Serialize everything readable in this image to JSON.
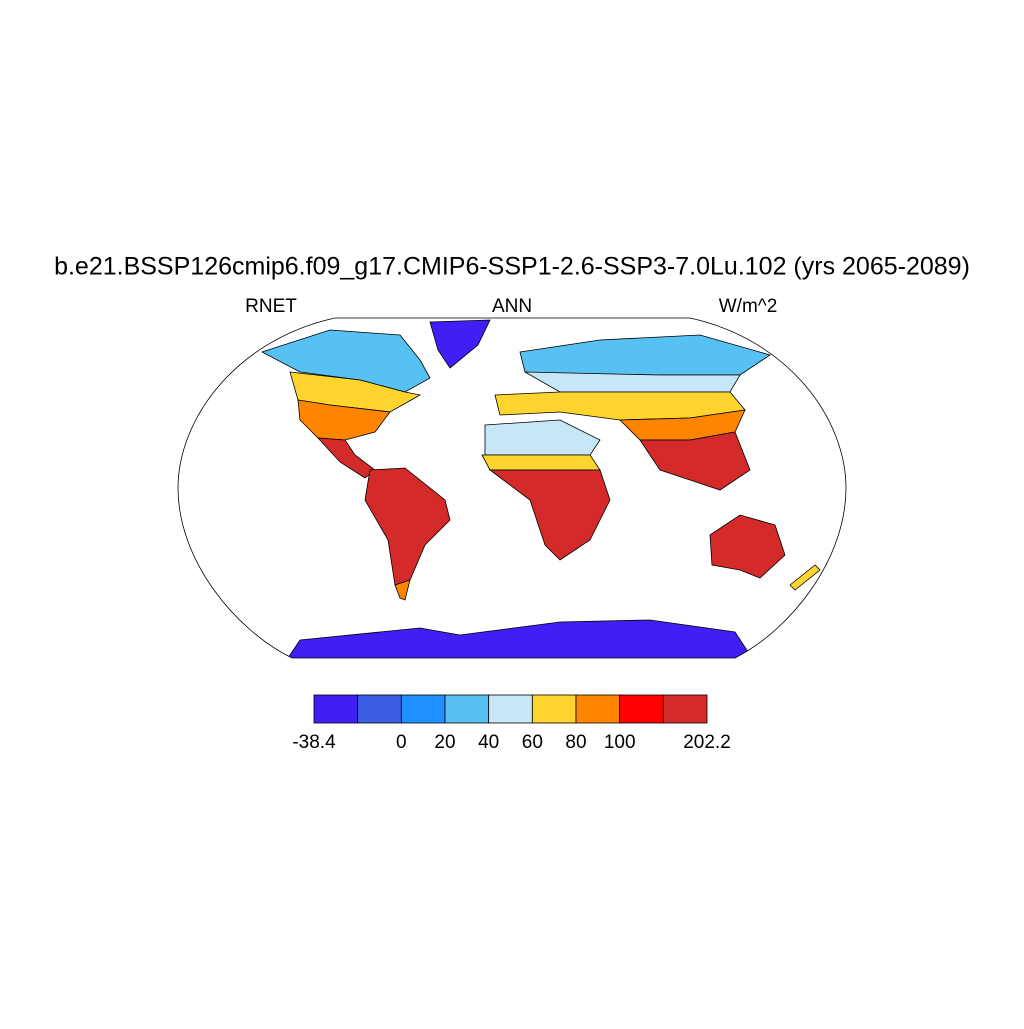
{
  "title": "b.e21.BSSP126cmip6.f09_g17.CMIP6-SSP1-2.6-SSP3-7.0Lu.102 (yrs 2065-2089)",
  "left_string": "RNET",
  "center_string": "ANN",
  "right_string": "W/m^2",
  "colorbar": {
    "levels": [
      -38.4,
      null,
      0,
      20,
      40,
      60,
      80,
      100,
      null,
      202.2
    ],
    "colors": [
      "#3f1ff5",
      "#3b5ee2",
      "#1e90ff",
      "#56c1f2",
      "#c7e6f8",
      "#ffd42f",
      "#ff8500",
      "#ff0000",
      "#d42a2a"
    ]
  }
}
